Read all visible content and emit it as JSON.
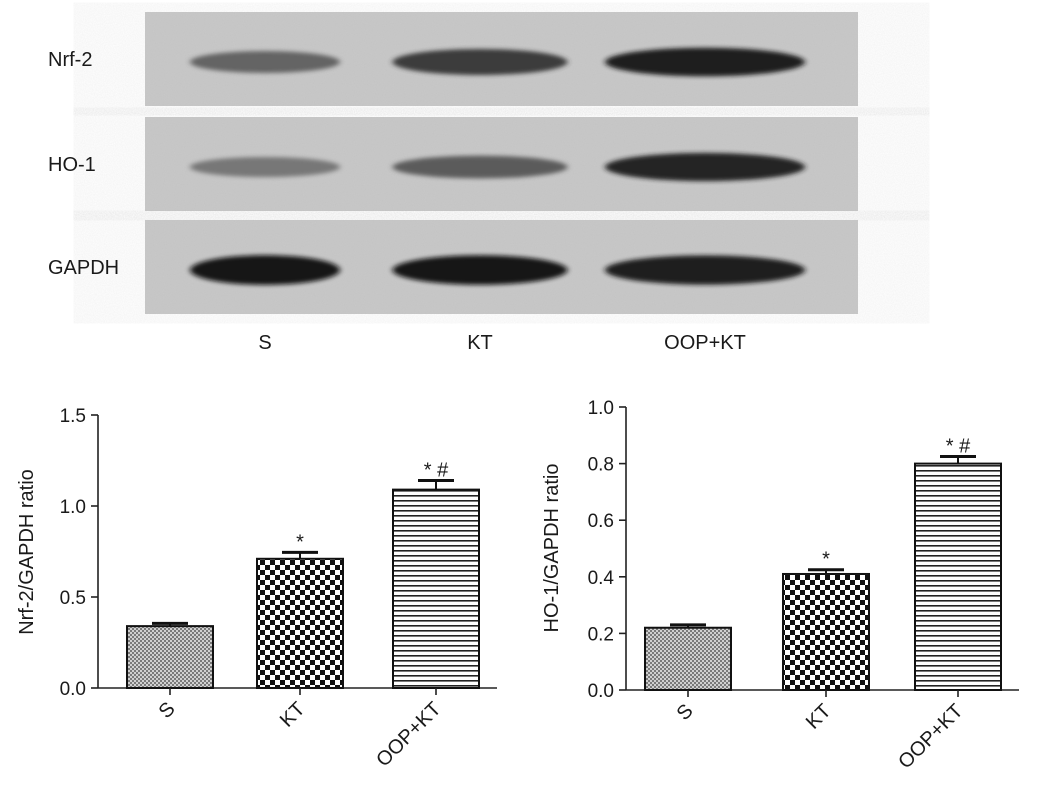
{
  "blot": {
    "rows": [
      {
        "label": "Nrf-2",
        "intensities": [
          0.55,
          0.78,
          0.92
        ]
      },
      {
        "label": "HO-1",
        "intensities": [
          0.45,
          0.6,
          0.9
        ]
      },
      {
        "label": "GAPDH",
        "intensities": [
          0.98,
          0.97,
          0.96
        ]
      }
    ],
    "lanes": [
      "S",
      "KT",
      "OOP+KT"
    ]
  },
  "chart_data": [
    {
      "type": "bar",
      "categories": [
        "S",
        "KT",
        "OOP+KT"
      ],
      "values": [
        0.34,
        0.71,
        1.09
      ],
      "errors": [
        0.015,
        0.035,
        0.05
      ],
      "annotations": [
        "",
        "*",
        "* #"
      ],
      "ylabel": "Nrf-2/GAPDH ratio",
      "xlabel": "",
      "title": "",
      "ylim": [
        0,
        1.5
      ],
      "yticks": [
        "0.0",
        "0.5",
        "1.0",
        "1.5"
      ],
      "grid": false
    },
    {
      "type": "bar",
      "categories": [
        "S",
        "KT",
        "OOP+KT"
      ],
      "values": [
        0.22,
        0.41,
        0.8
      ],
      "errors": [
        0.01,
        0.015,
        0.025
      ],
      "annotations": [
        "",
        "*",
        "* #"
      ],
      "ylabel": "HO-1/GAPDH ratio",
      "xlabel": "",
      "title": "",
      "ylim": [
        0,
        1.0
      ],
      "yticks": [
        "0.0",
        "0.2",
        "0.4",
        "0.6",
        "0.8",
        "1.0"
      ],
      "grid": false
    }
  ]
}
